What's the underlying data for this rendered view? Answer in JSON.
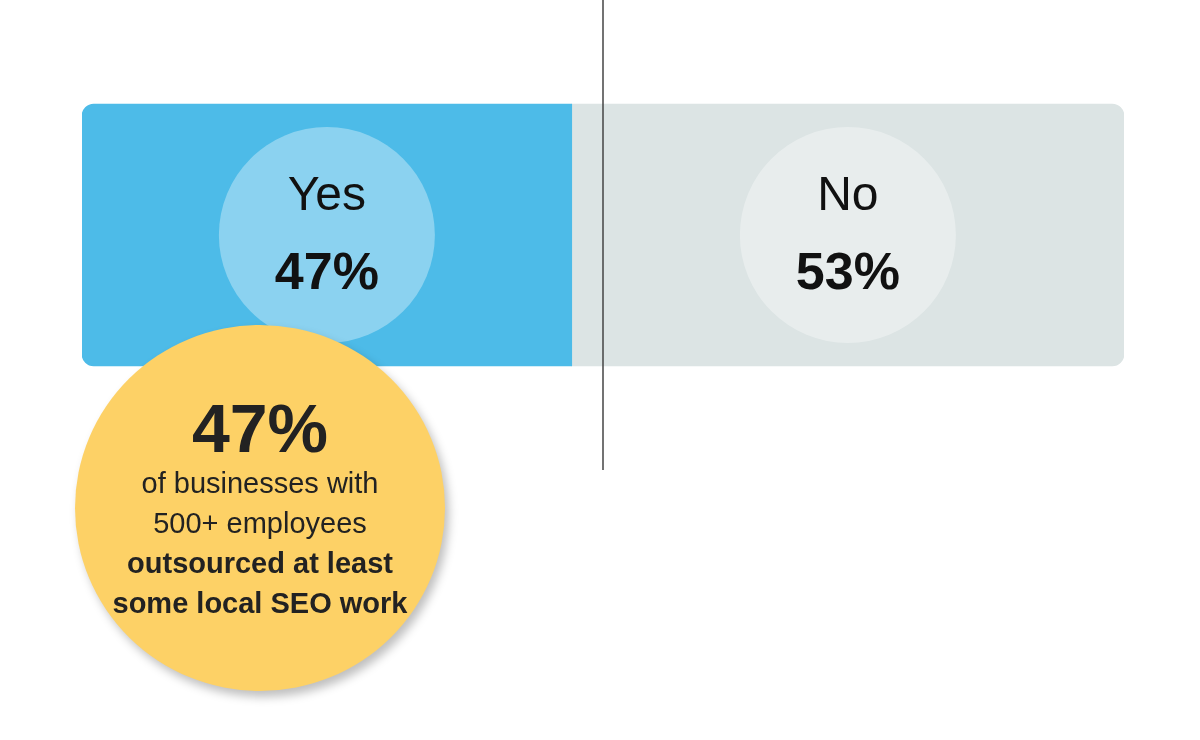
{
  "chart_data": {
    "type": "bar",
    "orientation": "horizontal",
    "stacked": true,
    "categories": [
      null
    ],
    "series": [
      {
        "name": "Yes",
        "color": "#4dbbe8",
        "values": [
          47
        ],
        "value_labels": [
          "47%"
        ]
      },
      {
        "name": "No",
        "color": "#dce4e4",
        "values": [
          53
        ],
        "value_labels": [
          "53%"
        ]
      }
    ],
    "xlim": [
      0,
      100
    ],
    "tick_labels": false,
    "ref_lines": [
      {
        "axis": "x",
        "value": 50,
        "color": "#444444"
      }
    ],
    "annotations": [
      "47%",
      "of businesses with 500+ employees",
      "outsourced at least some local SEO work"
    ]
  }
}
